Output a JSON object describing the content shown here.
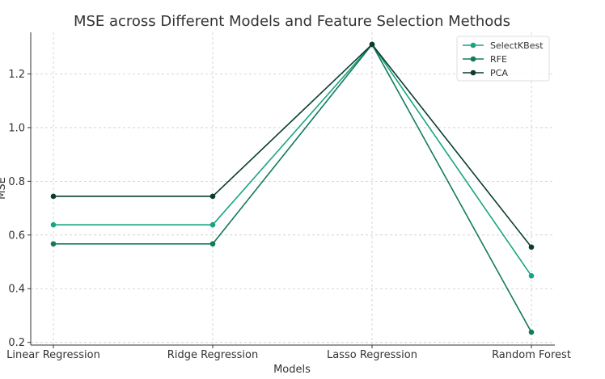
{
  "chart_data": {
    "type": "line",
    "title": "MSE across Different Models and Feature Selection Methods",
    "xlabel": "Models",
    "ylabel": "MSE",
    "categories": [
      "Linear Regression",
      "Ridge Regression",
      "Lasso Regression",
      "Random Forest"
    ],
    "ylim": [
      0.19,
      1.355
    ],
    "yticks": [
      "0.2",
      "0.4",
      "0.6",
      "0.8",
      "1.0",
      "1.2"
    ],
    "grid": true,
    "legend_position": "top-right",
    "series": [
      {
        "name": "SelectKBest",
        "values": [
          0.638,
          0.638,
          1.31,
          0.448
        ],
        "color": "#17a583"
      },
      {
        "name": "RFE",
        "values": [
          0.567,
          0.567,
          1.31,
          0.238
        ],
        "color": "#137a5c"
      },
      {
        "name": "PCA",
        "values": [
          0.744,
          0.744,
          1.31,
          0.555
        ],
        "color": "#0b3d2c"
      }
    ]
  }
}
